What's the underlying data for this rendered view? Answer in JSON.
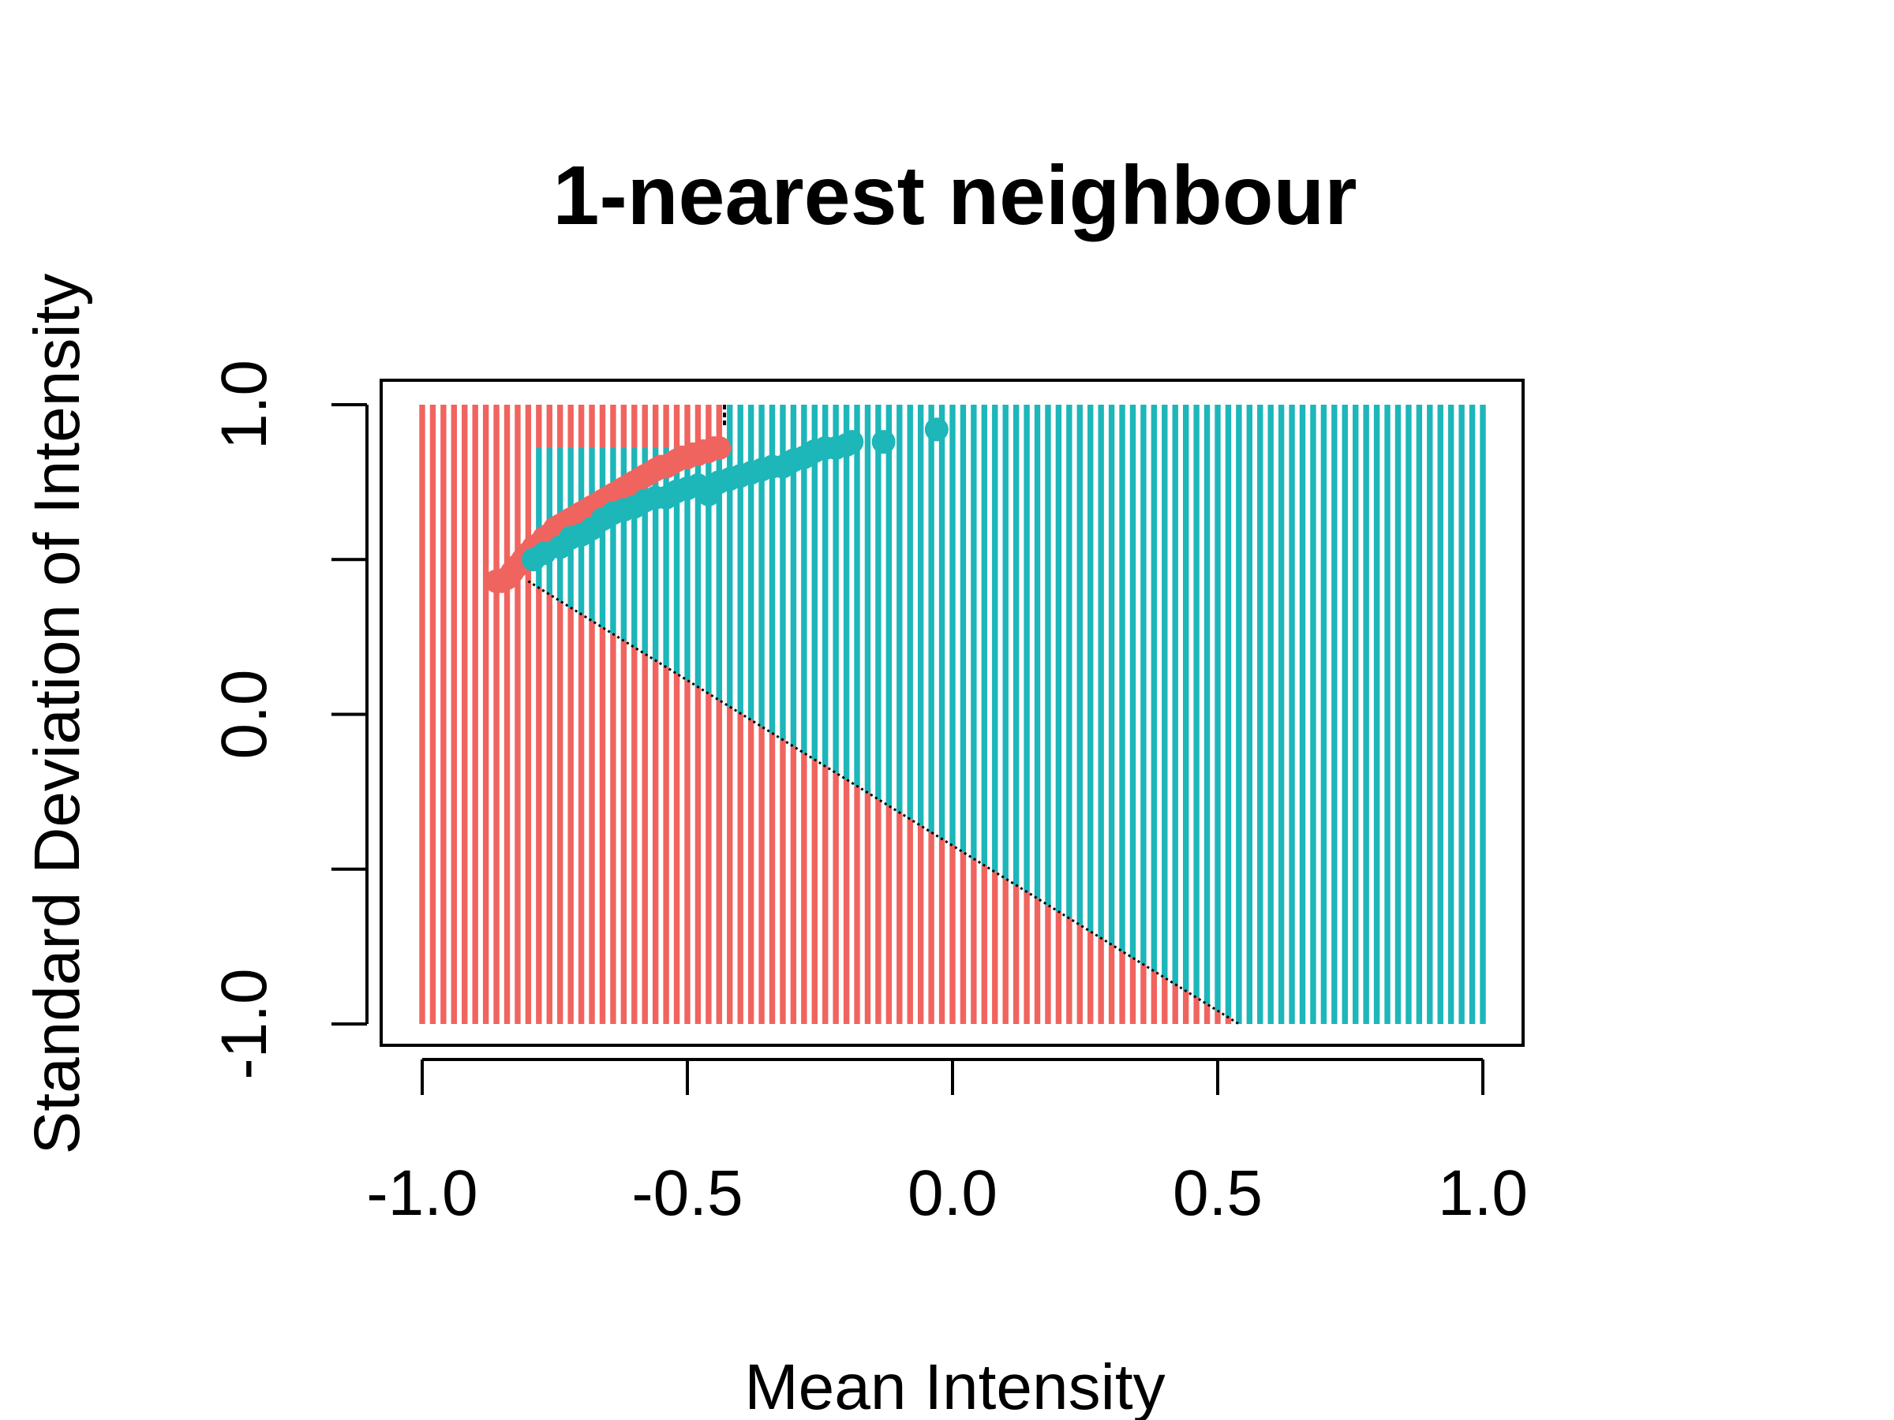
{
  "chart_data": {
    "type": "scatter",
    "title": "1-nearest neighbour",
    "xlabel": "Mean Intensity",
    "ylabel": "Standard Deviation of Intensity",
    "xlim": [
      -1.0,
      1.0
    ],
    "ylim": [
      -1.0,
      1.0
    ],
    "x_ticks": [
      -1.0,
      -0.5,
      0.0,
      0.5,
      1.0
    ],
    "x_tick_labels": [
      "-1.0",
      "-0.5",
      "0.0",
      "0.5",
      "1.0"
    ],
    "y_ticks": [
      -1.0,
      -0.5,
      0.0,
      0.5,
      1.0
    ],
    "y_tick_labels": [
      "-1.0",
      "",
      "0.0",
      "",
      "1.0"
    ],
    "grid": false,
    "legend": "none",
    "colors": {
      "class_a": "#F0645F",
      "class_b": "#1DB6B9",
      "boundary": "#000000"
    },
    "background": {
      "type": "decision_regions",
      "grid_columns": 101,
      "x_range": [
        -1.0,
        1.0
      ],
      "y_range": [
        -1.0,
        1.0
      ],
      "boundary_top_x": -0.43,
      "boundary_line": [
        [
          -0.8,
          0.43
        ],
        [
          0.54,
          -1.0
        ]
      ]
    },
    "series": [
      {
        "color": "#F0645F",
        "points": [
          [
            -0.86,
            0.43
          ],
          [
            -0.85,
            0.43
          ],
          [
            -0.84,
            0.44
          ],
          [
            -0.83,
            0.46
          ],
          [
            -0.82,
            0.48
          ],
          [
            -0.81,
            0.5
          ],
          [
            -0.8,
            0.52
          ],
          [
            -0.79,
            0.54
          ],
          [
            -0.78,
            0.55
          ],
          [
            -0.77,
            0.57
          ],
          [
            -0.76,
            0.58
          ],
          [
            -0.75,
            0.6
          ],
          [
            -0.74,
            0.61
          ],
          [
            -0.73,
            0.62
          ],
          [
            -0.72,
            0.63
          ],
          [
            -0.71,
            0.64
          ],
          [
            -0.7,
            0.65
          ],
          [
            -0.69,
            0.66
          ],
          [
            -0.68,
            0.67
          ],
          [
            -0.67,
            0.68
          ],
          [
            -0.66,
            0.69
          ],
          [
            -0.65,
            0.7
          ],
          [
            -0.64,
            0.71
          ],
          [
            -0.63,
            0.72
          ],
          [
            -0.62,
            0.73
          ],
          [
            -0.61,
            0.74
          ],
          [
            -0.6,
            0.75
          ],
          [
            -0.59,
            0.76
          ],
          [
            -0.58,
            0.77
          ],
          [
            -0.57,
            0.78
          ],
          [
            -0.56,
            0.79
          ],
          [
            -0.55,
            0.8
          ],
          [
            -0.54,
            0.8
          ],
          [
            -0.53,
            0.81
          ],
          [
            -0.52,
            0.82
          ],
          [
            -0.51,
            0.83
          ],
          [
            -0.5,
            0.83
          ],
          [
            -0.49,
            0.84
          ],
          [
            -0.48,
            0.84
          ],
          [
            -0.47,
            0.85
          ],
          [
            -0.46,
            0.85
          ],
          [
            -0.45,
            0.86
          ],
          [
            -0.44,
            0.86
          ]
        ]
      },
      {
        "color": "#1DB6B9",
        "points": [
          [
            -0.79,
            0.5
          ],
          [
            -0.77,
            0.52
          ],
          [
            -0.74,
            0.54
          ],
          [
            -0.72,
            0.57
          ],
          [
            -0.7,
            0.58
          ],
          [
            -0.68,
            0.6
          ],
          [
            -0.66,
            0.63
          ],
          [
            -0.64,
            0.65
          ],
          [
            -0.62,
            0.66
          ],
          [
            -0.6,
            0.67
          ],
          [
            -0.58,
            0.69
          ],
          [
            -0.56,
            0.7
          ],
          [
            -0.54,
            0.7
          ],
          [
            -0.52,
            0.72
          ],
          [
            -0.5,
            0.73
          ],
          [
            -0.48,
            0.74
          ],
          [
            -0.46,
            0.71
          ],
          [
            -0.44,
            0.75
          ],
          [
            -0.42,
            0.76
          ],
          [
            -0.4,
            0.77
          ],
          [
            -0.38,
            0.78
          ],
          [
            -0.36,
            0.79
          ],
          [
            -0.34,
            0.8
          ],
          [
            -0.32,
            0.8
          ],
          [
            -0.3,
            0.82
          ],
          [
            -0.28,
            0.83
          ],
          [
            -0.26,
            0.85
          ],
          [
            -0.24,
            0.86
          ],
          [
            -0.22,
            0.86
          ],
          [
            -0.2,
            0.87
          ],
          [
            -0.19,
            0.88
          ],
          [
            -0.13,
            0.88
          ],
          [
            -0.03,
            0.92
          ]
        ]
      }
    ]
  }
}
